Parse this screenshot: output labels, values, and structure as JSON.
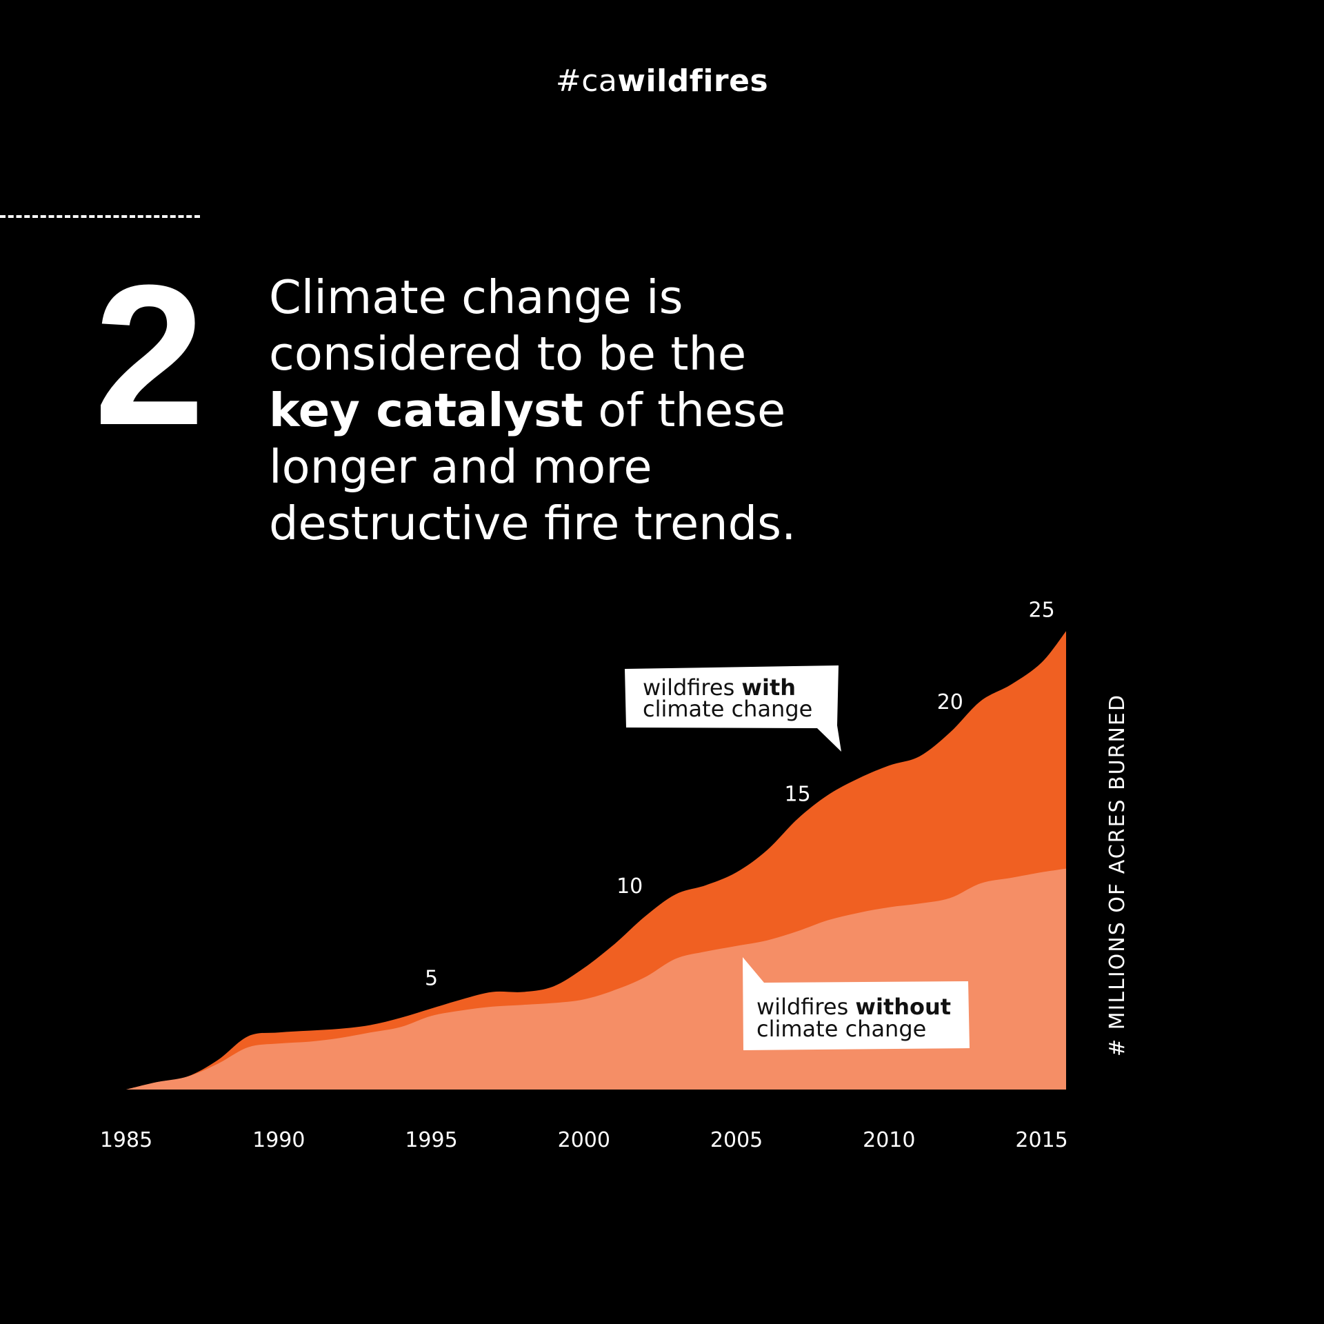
{
  "header": {
    "hashtag_prefix": "#ca",
    "hashtag_bold": "wildfires"
  },
  "headline": {
    "number": "2",
    "line1": "Climate change is",
    "line2": "considered to be the",
    "line3_bold": "key catalyst",
    "line3_rest": " of these",
    "line4": "longer and more",
    "line5": "destructive fire trends."
  },
  "chart_data": {
    "type": "area",
    "x": [
      1985,
      1986,
      1987,
      1988,
      1989,
      1990,
      1991,
      1992,
      1993,
      1994,
      1995,
      1996,
      1997,
      1998,
      1999,
      2000,
      2001,
      2002,
      2003,
      2004,
      2005,
      2006,
      2007,
      2008,
      2009,
      2010,
      2011,
      2012,
      2013,
      2014,
      2015,
      2015.8
    ],
    "series": [
      {
        "name": "wildfires with climate change",
        "values": [
          0.0,
          0.4,
          0.7,
          1.6,
          2.9,
          3.1,
          3.2,
          3.3,
          3.5,
          3.9,
          4.4,
          4.9,
          5.3,
          5.3,
          5.6,
          6.6,
          7.9,
          9.4,
          10.6,
          11.1,
          11.8,
          13.0,
          14.7,
          16.0,
          16.9,
          17.6,
          18.1,
          19.4,
          21.1,
          22.0,
          23.2,
          24.9
        ],
        "color": "#f06022"
      },
      {
        "name": "wildfires without climate change",
        "values": [
          0.0,
          0.4,
          0.7,
          1.4,
          2.3,
          2.5,
          2.6,
          2.8,
          3.1,
          3.4,
          4.0,
          4.3,
          4.5,
          4.6,
          4.7,
          4.9,
          5.4,
          6.1,
          7.1,
          7.5,
          7.8,
          8.1,
          8.6,
          9.2,
          9.6,
          9.9,
          10.1,
          10.4,
          11.2,
          11.5,
          11.8,
          12.0
        ],
        "color": "#f58e66"
      }
    ],
    "xticks": [
      "1985",
      "1990",
      "1995",
      "2000",
      "2005",
      "2010",
      "2015"
    ],
    "value_labels": [
      {
        "x": 1995,
        "label": "5",
        "y": 5
      },
      {
        "x": 2001.5,
        "label": "10",
        "y": 10
      },
      {
        "x": 2007,
        "label": "15",
        "y": 15
      },
      {
        "x": 2012,
        "label": "20",
        "y": 20
      },
      {
        "x": 2015,
        "label": "25",
        "y": 25
      }
    ],
    "callouts": {
      "with_text": "wildfires ",
      "with_bold": "with",
      "with_line2": "climate change",
      "without_text": "wildfires ",
      "without_bold": "without",
      "without_line2": "climate change"
    },
    "ylabel": "# MILLIONS OF ACRES BURNED",
    "xlim": [
      1985,
      2015.8
    ],
    "ylim": [
      0,
      25
    ]
  }
}
